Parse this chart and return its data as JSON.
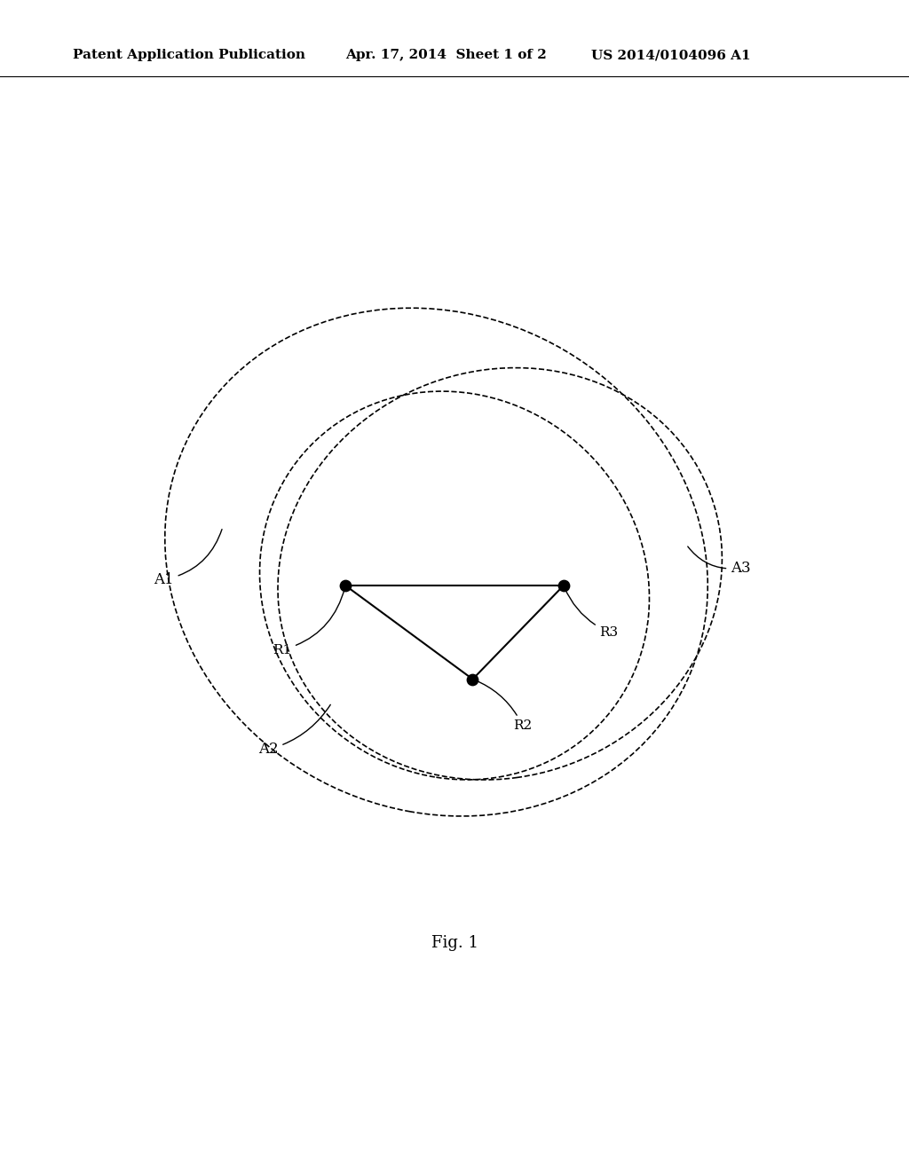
{
  "header_left": "Patent Application Publication",
  "header_mid": "Apr. 17, 2014  Sheet 1 of 2",
  "header_right": "US 2014/0104096 A1",
  "fig_caption": "Fig. 1",
  "background_color": "#ffffff",
  "line_color": "#000000",
  "robots": {
    "R1": [
      0.38,
      0.5
    ],
    "R2": [
      0.52,
      0.42
    ],
    "R3": [
      0.62,
      0.5
    ]
  },
  "header_fontsize": 11,
  "label_fontsize": 12,
  "robot_label_fontsize": 11
}
